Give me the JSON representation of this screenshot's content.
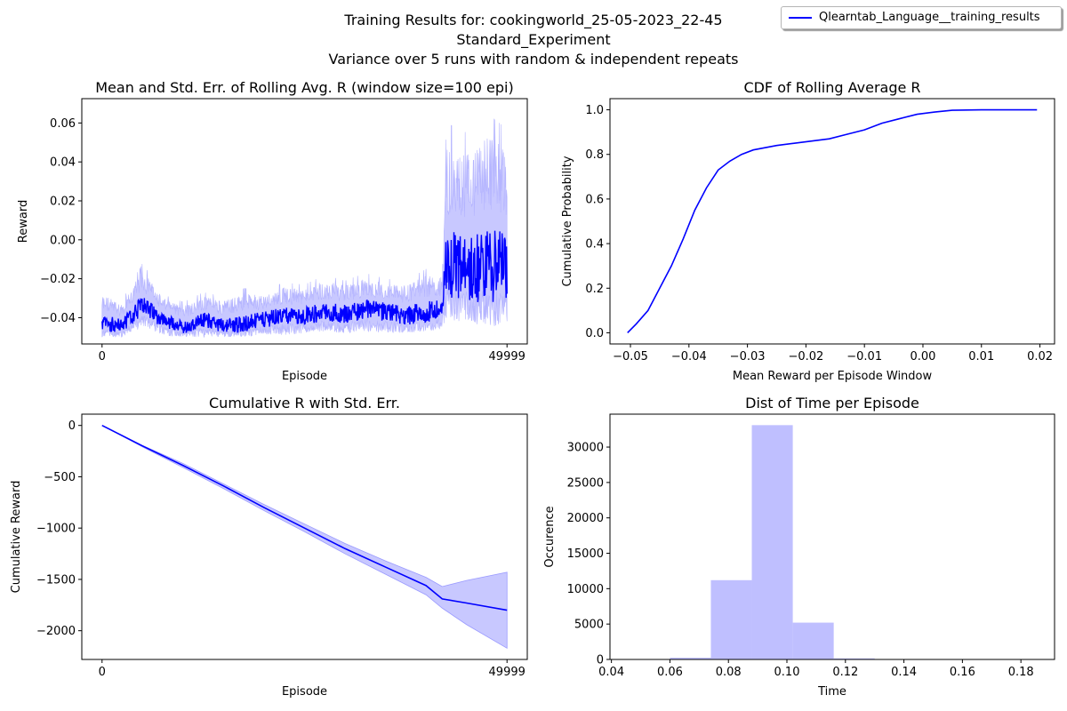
{
  "suptitle": {
    "line1": "Training Results for: cookingworld_25-05-2023_22-45",
    "line2": "Standard_Experiment",
    "line3": "Variance over 5 runs with random & independent repeats"
  },
  "legend": {
    "label": "Qlearntab_Language__training_results",
    "color": "#0000ff"
  },
  "colors": {
    "line": "#0000ff",
    "band": "#c8c8ff"
  },
  "chart_data": [
    {
      "type": "line",
      "title": "Mean and Std. Err. of Rolling Avg. R (window size=100 epi)",
      "xlabel": "Episode",
      "ylabel": "Reward",
      "xlim": [
        -2500,
        52500
      ],
      "ylim": [
        -0.0535,
        0.0725
      ],
      "xticks": [
        0,
        49999
      ],
      "xtick_labels": [
        "0",
        "49999"
      ],
      "yticks": [
        -0.04,
        -0.02,
        0.0,
        0.02,
        0.04,
        0.06
      ],
      "ytick_labels": [
        "−0.04",
        "−0.02",
        "0.00",
        "0.02",
        "0.04",
        "0.06"
      ],
      "series": [
        {
          "name": "Qlearntab_Language__training_results",
          "x": [
            0,
            2500,
            5000,
            7500,
            10000,
            12500,
            15000,
            17500,
            20000,
            22500,
            25000,
            27500,
            30000,
            32500,
            35000,
            37500,
            40000,
            42000,
            42500,
            45000,
            47500,
            49999
          ],
          "y": [
            -0.043,
            -0.044,
            -0.034,
            -0.041,
            -0.045,
            -0.041,
            -0.044,
            -0.043,
            -0.041,
            -0.039,
            -0.039,
            -0.037,
            -0.038,
            -0.036,
            -0.037,
            -0.039,
            -0.037,
            -0.036,
            -0.012,
            -0.015,
            -0.013,
            -0.014
          ],
          "y_low": [
            -0.05,
            -0.05,
            -0.045,
            -0.049,
            -0.05,
            -0.05,
            -0.05,
            -0.05,
            -0.049,
            -0.049,
            -0.048,
            -0.047,
            -0.048,
            -0.047,
            -0.048,
            -0.048,
            -0.047,
            -0.046,
            -0.041,
            -0.043,
            -0.044,
            -0.045
          ],
          "y_high": [
            -0.025,
            -0.031,
            -0.012,
            -0.028,
            -0.032,
            -0.027,
            -0.029,
            -0.025,
            -0.026,
            -0.022,
            -0.023,
            -0.018,
            -0.021,
            -0.017,
            -0.02,
            -0.021,
            -0.015,
            -0.016,
            0.06,
            0.055,
            0.065,
            0.057
          ]
        }
      ]
    },
    {
      "type": "line",
      "title": "CDF of Rolling Average R",
      "xlabel": "Mean Reward per Episode Window",
      "ylabel": "Cumulative Probability",
      "xlim": [
        -0.0535,
        0.0225
      ],
      "ylim": [
        -0.05,
        1.05
      ],
      "xticks": [
        -0.05,
        -0.04,
        -0.03,
        -0.02,
        -0.01,
        0.0,
        0.01,
        0.02
      ],
      "xtick_labels": [
        "−0.05",
        "−0.04",
        "−0.03",
        "−0.02",
        "−0.01",
        "0.00",
        "0.01",
        "0.02"
      ],
      "yticks": [
        0.0,
        0.2,
        0.4,
        0.6,
        0.8,
        1.0
      ],
      "ytick_labels": [
        "0.0",
        "0.2",
        "0.4",
        "0.6",
        "0.8",
        "1.0"
      ],
      "series": [
        {
          "name": "Qlearntab_Language__training_results",
          "x": [
            -0.0505,
            -0.049,
            -0.047,
            -0.045,
            -0.043,
            -0.041,
            -0.039,
            -0.037,
            -0.035,
            -0.033,
            -0.031,
            -0.029,
            -0.027,
            -0.025,
            -0.022,
            -0.019,
            -0.016,
            -0.013,
            -0.01,
            -0.007,
            -0.004,
            -0.001,
            0.002,
            0.005,
            0.01,
            0.0195
          ],
          "y": [
            0.0,
            0.04,
            0.1,
            0.2,
            0.3,
            0.42,
            0.55,
            0.65,
            0.73,
            0.77,
            0.8,
            0.82,
            0.83,
            0.84,
            0.85,
            0.86,
            0.87,
            0.89,
            0.91,
            0.94,
            0.96,
            0.98,
            0.99,
            0.998,
            1.0,
            1.0
          ]
        }
      ]
    },
    {
      "type": "line",
      "title": "Cumulative R with Std. Err.",
      "xlabel": "Episode",
      "ylabel": "Cumulative Reward",
      "xlim": [
        -2500,
        52500
      ],
      "ylim": [
        -2280,
        110
      ],
      "xticks": [
        0,
        49999
      ],
      "xtick_labels": [
        "0",
        "49999"
      ],
      "yticks": [
        0,
        -500,
        -1000,
        -1500,
        -2000
      ],
      "ytick_labels": [
        "0",
        "−500",
        "−1000",
        "−1500",
        "−2000"
      ],
      "series": [
        {
          "name": "Qlearntab_Language__training_results",
          "x": [
            0,
            5000,
            10000,
            15000,
            20000,
            25000,
            30000,
            35000,
            40000,
            42000,
            45000,
            49999
          ],
          "y": [
            0,
            -200,
            -390,
            -590,
            -800,
            -1000,
            -1200,
            -1380,
            -1560,
            -1690,
            -1730,
            -1800
          ],
          "y_low": [
            0,
            -210,
            -410,
            -615,
            -830,
            -1035,
            -1250,
            -1450,
            -1650,
            -1780,
            -1940,
            -2170
          ],
          "y_high": [
            0,
            -195,
            -370,
            -570,
            -770,
            -960,
            -1150,
            -1320,
            -1480,
            -1570,
            -1510,
            -1430
          ]
        }
      ]
    },
    {
      "type": "bar",
      "title": "Dist of Time per Episode",
      "xlabel": "Time",
      "ylabel": "Occurence",
      "xlim": [
        0.0395,
        0.1915
      ],
      "ylim": [
        0,
        34650
      ],
      "xticks": [
        0.04,
        0.06,
        0.08,
        0.1,
        0.12,
        0.14,
        0.16,
        0.18
      ],
      "xtick_labels": [
        "0.04",
        "0.06",
        "0.08",
        "0.10",
        "0.12",
        "0.14",
        "0.16",
        "0.18"
      ],
      "yticks": [
        0,
        5000,
        10000,
        15000,
        20000,
        25000,
        30000
      ],
      "ytick_labels": [
        "0",
        "5000",
        "10000",
        "15000",
        "20000",
        "25000",
        "30000"
      ],
      "bin_edges": [
        0.046,
        0.06,
        0.074,
        0.088,
        0.102,
        0.116,
        0.13,
        0.144,
        0.158,
        0.172,
        0.186
      ],
      "values": [
        20,
        250,
        11200,
        33100,
        5200,
        150,
        30,
        10,
        5,
        2
      ]
    }
  ]
}
